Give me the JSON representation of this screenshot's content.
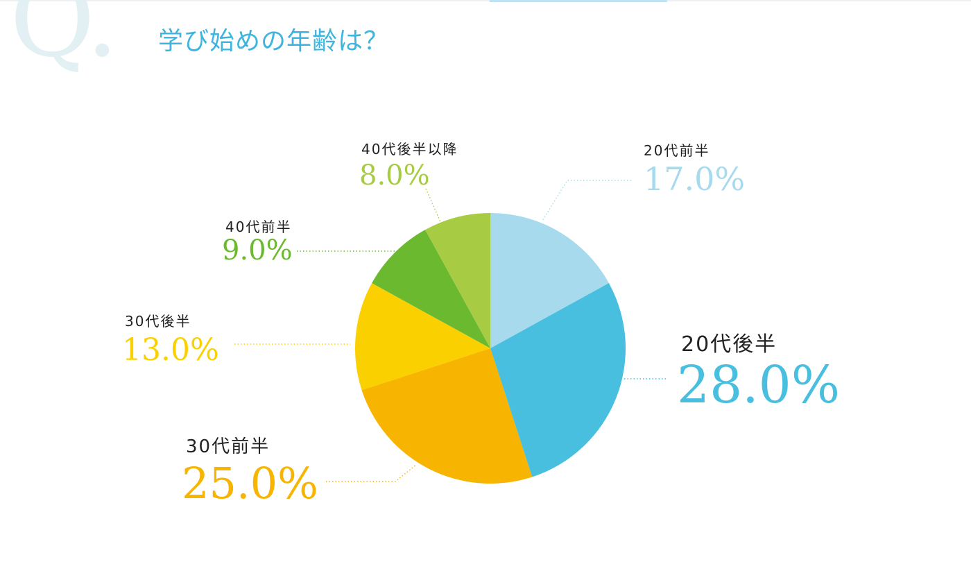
{
  "title": "学び始めの年齢は？",
  "q_mark": "Q.",
  "chart_data": {
    "type": "pie",
    "categories": [
      "20代前半",
      "20代後半",
      "30代前半",
      "30代後半",
      "40代前半",
      "40代後半以降"
    ],
    "values": [
      17.0,
      28.0,
      25.0,
      13.0,
      9.0,
      8.0
    ],
    "value_labels": [
      "17.0%",
      "28.0%",
      "25.0%",
      "13.0%",
      "9.0%",
      "8.0%"
    ],
    "colors": [
      "#a6daec",
      "#49bfe0",
      "#f7b400",
      "#fbd000",
      "#6ab92f",
      "#a7cc43"
    ],
    "start": "12 o'clock, clockwise"
  }
}
